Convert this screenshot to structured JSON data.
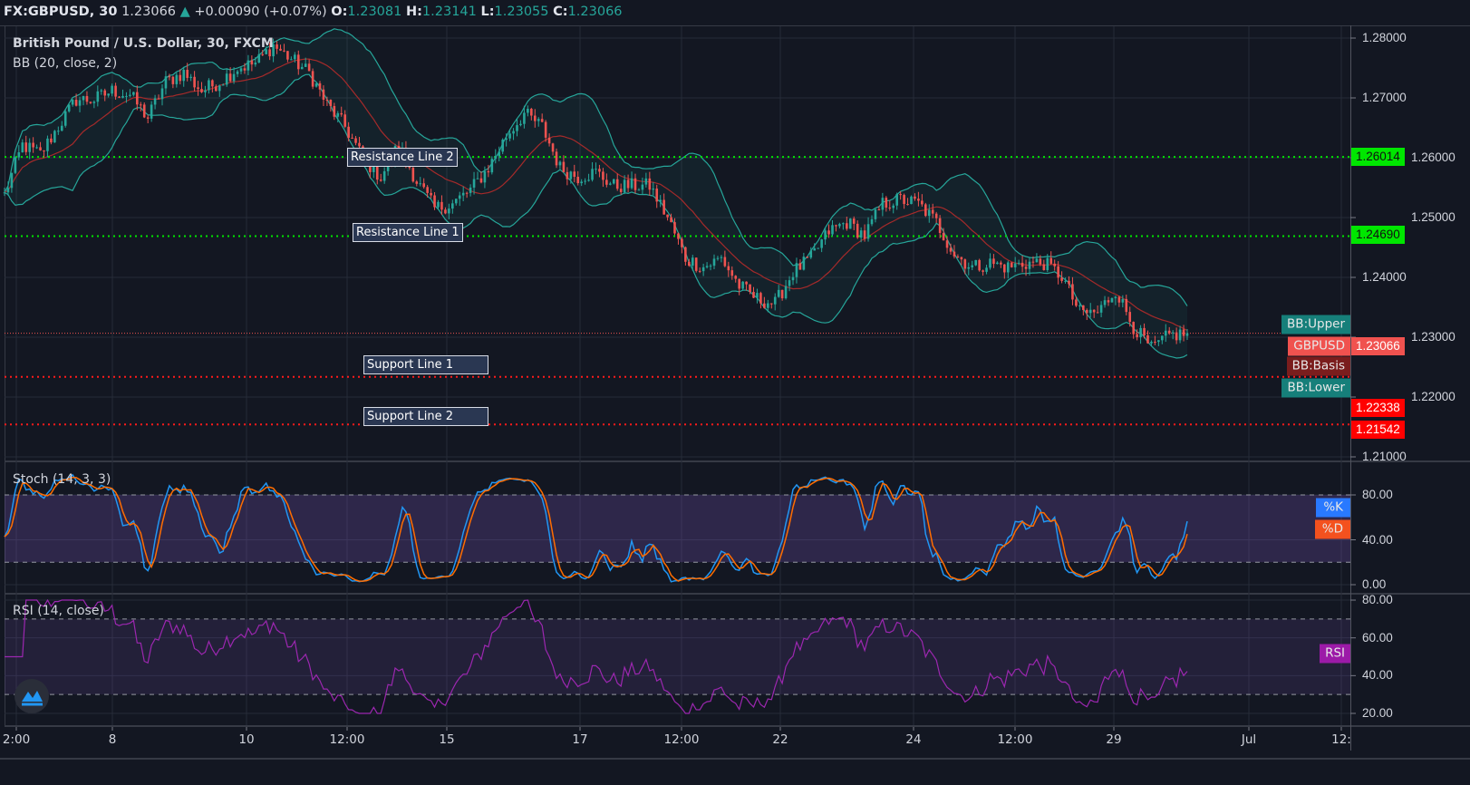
{
  "header": {
    "symbol": "FX:GBPUSD, 30",
    "last": "1.23066",
    "change": "+0.00090 (+0.07%)",
    "o_label": "O:",
    "o": "1.23081",
    "h_label": "H:",
    "h": "1.23141",
    "l_label": "L:",
    "l": "1.23055",
    "c_label": "C:",
    "c": "1.23066"
  },
  "colors": {
    "background": "#131722",
    "grid": "#262b38",
    "up": "#26a69a",
    "down": "#ef5350",
    "bb_band": "#26a69a",
    "bb_basis": "#a52a2a",
    "stoch_k": "#2196f3",
    "stoch_d": "#ff6d00",
    "rsi": "#9c27b0",
    "resistance": "#00e600",
    "support": "#ff1a1a"
  },
  "chart_data": [
    {
      "type": "candlestick",
      "title": "British Pound / U.S. Dollar, 30, FXCM",
      "indicator": "BB (20, close, 2)",
      "ylim": [
        1.21,
        1.28
      ],
      "y_ticks": [
        "1.28000",
        "1.27000",
        "1.26000",
        "1.25000",
        "1.24000",
        "1.23000",
        "1.22000",
        "1.21000"
      ],
      "x_ticks": [
        "2:00",
        "8",
        "10",
        "12:00",
        "15",
        "17",
        "12:00",
        "22",
        "24",
        "12:00",
        "29",
        "Jul",
        "12:"
      ],
      "close_path": [
        1.2538,
        1.2621,
        1.2606,
        1.2652,
        1.2697,
        1.2697,
        1.2712,
        1.2705,
        1.2667,
        1.2727,
        1.2742,
        1.2712,
        1.2727,
        1.275,
        1.2758,
        1.2788,
        1.2765,
        1.2742,
        1.2689,
        1.2652,
        1.2599,
        1.2568,
        1.2621,
        1.2561,
        1.2515,
        1.2523,
        1.2546,
        1.2583,
        1.2636,
        1.2674,
        1.2652,
        1.2583,
        1.2568,
        1.2576,
        1.2553,
        1.2553,
        1.2553,
        1.25,
        1.2432,
        1.2417,
        1.2432,
        1.2386,
        1.2364,
        1.2356,
        1.2409,
        1.2432,
        1.2477,
        1.2492,
        1.247,
        1.2523,
        1.253,
        1.2523,
        1.2492,
        1.2439,
        1.2417,
        1.2424,
        1.2417,
        1.2424,
        1.2424,
        1.2402,
        1.2341,
        1.2341,
        1.2379,
        1.2318,
        1.228,
        1.2303,
        1.23066
      ],
      "horizontal_lines": [
        {
          "label": "Resistance Line 2",
          "value": "1.26014",
          "kind": "resistance"
        },
        {
          "label": "Resistance Line 1",
          "value": "1.24690",
          "kind": "resistance"
        },
        {
          "label": "Support Line 1",
          "value": "1.22338",
          "kind": "support"
        },
        {
          "label": "Support Line 2",
          "value": "1.21542",
          "kind": "support"
        }
      ],
      "tags": {
        "bb_upper": "BB:Upper",
        "symbol": "GBPUSD",
        "price": "1.23066",
        "bb_basis": "BB:Basis",
        "bb_lower": "BB:Lower"
      }
    },
    {
      "type": "line",
      "title": "Stoch (14, 3, 3)",
      "ylim": [
        0,
        80
      ],
      "y_ticks": [
        "80.00",
        "40.00",
        "0.00"
      ],
      "bands": [
        20,
        80
      ],
      "series": [
        {
          "name": "%K"
        },
        {
          "name": "%D"
        }
      ]
    },
    {
      "type": "line",
      "title": "RSI (14, close)",
      "ylim": [
        20,
        80
      ],
      "y_ticks": [
        "80.00",
        "60.00",
        "40.00",
        "20.00"
      ],
      "bands": [
        30,
        70
      ],
      "series": [
        {
          "name": "RSI"
        }
      ]
    }
  ]
}
